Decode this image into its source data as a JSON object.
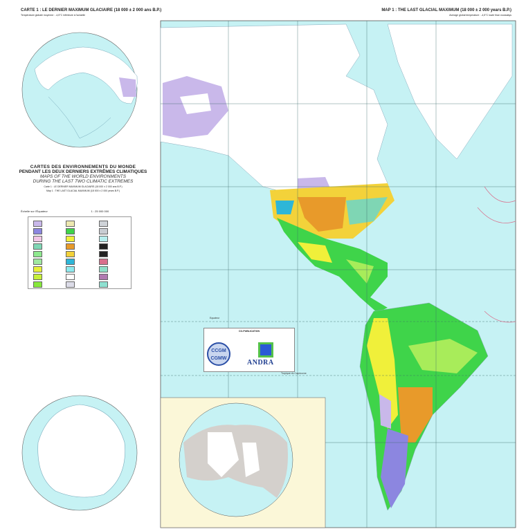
{
  "header": {
    "left_title": "CARTE 1 : LE DERNIER MAXIMUM GLACIAIRE (18 000 ± 2 000 ans B.P.)",
    "left_subtitle": "Température globale moyenne : -4,5°C inférieure à l'actuelle",
    "right_title": "MAP 1 : THE LAST GLACIAL MAXIMUM (18 000 ± 2 000 years B.P.)",
    "right_subtitle": "Average global temperature : -4,5°C lower than nowadays"
  },
  "title_block": {
    "line1": "CARTES DES ENVIRONNEMENTS DU MONDE",
    "line2": "PENDANT LES DEUX DERNIERS EXTRÊMES CLIMATIQUES",
    "line3": "MAPS OF THE WORLD ENVIRONMENTS",
    "line4": "DURING THE LAST TWO CLIMATIC EXTREMES",
    "carte": "Carte 1 : LE DERNIER MAXIMUM GLACIAIRE (18 000 ± 2 000 ans B.P.)",
    "map": "Map 1 : THE LAST GLACIAL MAXIMUM (18 000 ± 2 000 years B.P.)"
  },
  "scale": {
    "left": "Échelle sur l'Équateur",
    "value": "1 : 25 000 000"
  },
  "legend": {
    "swatches": [
      "#c9b8ea",
      "#ede8b0",
      "#cfd3d8",
      "#8c86e0",
      "#3fd44a",
      "#c8ccd2",
      "#f1c6e6",
      "#f0f03a",
      "#b6eeee",
      "#7fd6b4",
      "#e89a2a",
      "#222222",
      "#8ee88e",
      "#f3d23a",
      "#222222",
      "#a0e8a0",
      "#2eb6d8",
      "#d9708c",
      "#e8f03a",
      "#8eeaee",
      "#8ee0c8",
      "#c6f03a",
      "#ffffff",
      "#b07ab0",
      "#86e83a",
      "#dcdce8",
      "#8ee0d0"
    ]
  },
  "map": {
    "equator_label": "Equateur",
    "tropic_label": "Tropique du Capricorne",
    "colors": {
      "ocean": "#c6f2f4",
      "ice": "#ffffff",
      "tundra": "#c9b8ea",
      "forest": "#3fd44a",
      "steppe": "#f0f03a",
      "desert": "#e89a2a",
      "semi_desert": "#f3d23a",
      "grassland": "#a8ec5a",
      "cold_desert": "#8c86e0"
    }
  },
  "copublication": {
    "heading": "CO-PUBLICATION",
    "logo_left": "CCGM CGMW",
    "logo_right": "ANDRA"
  }
}
